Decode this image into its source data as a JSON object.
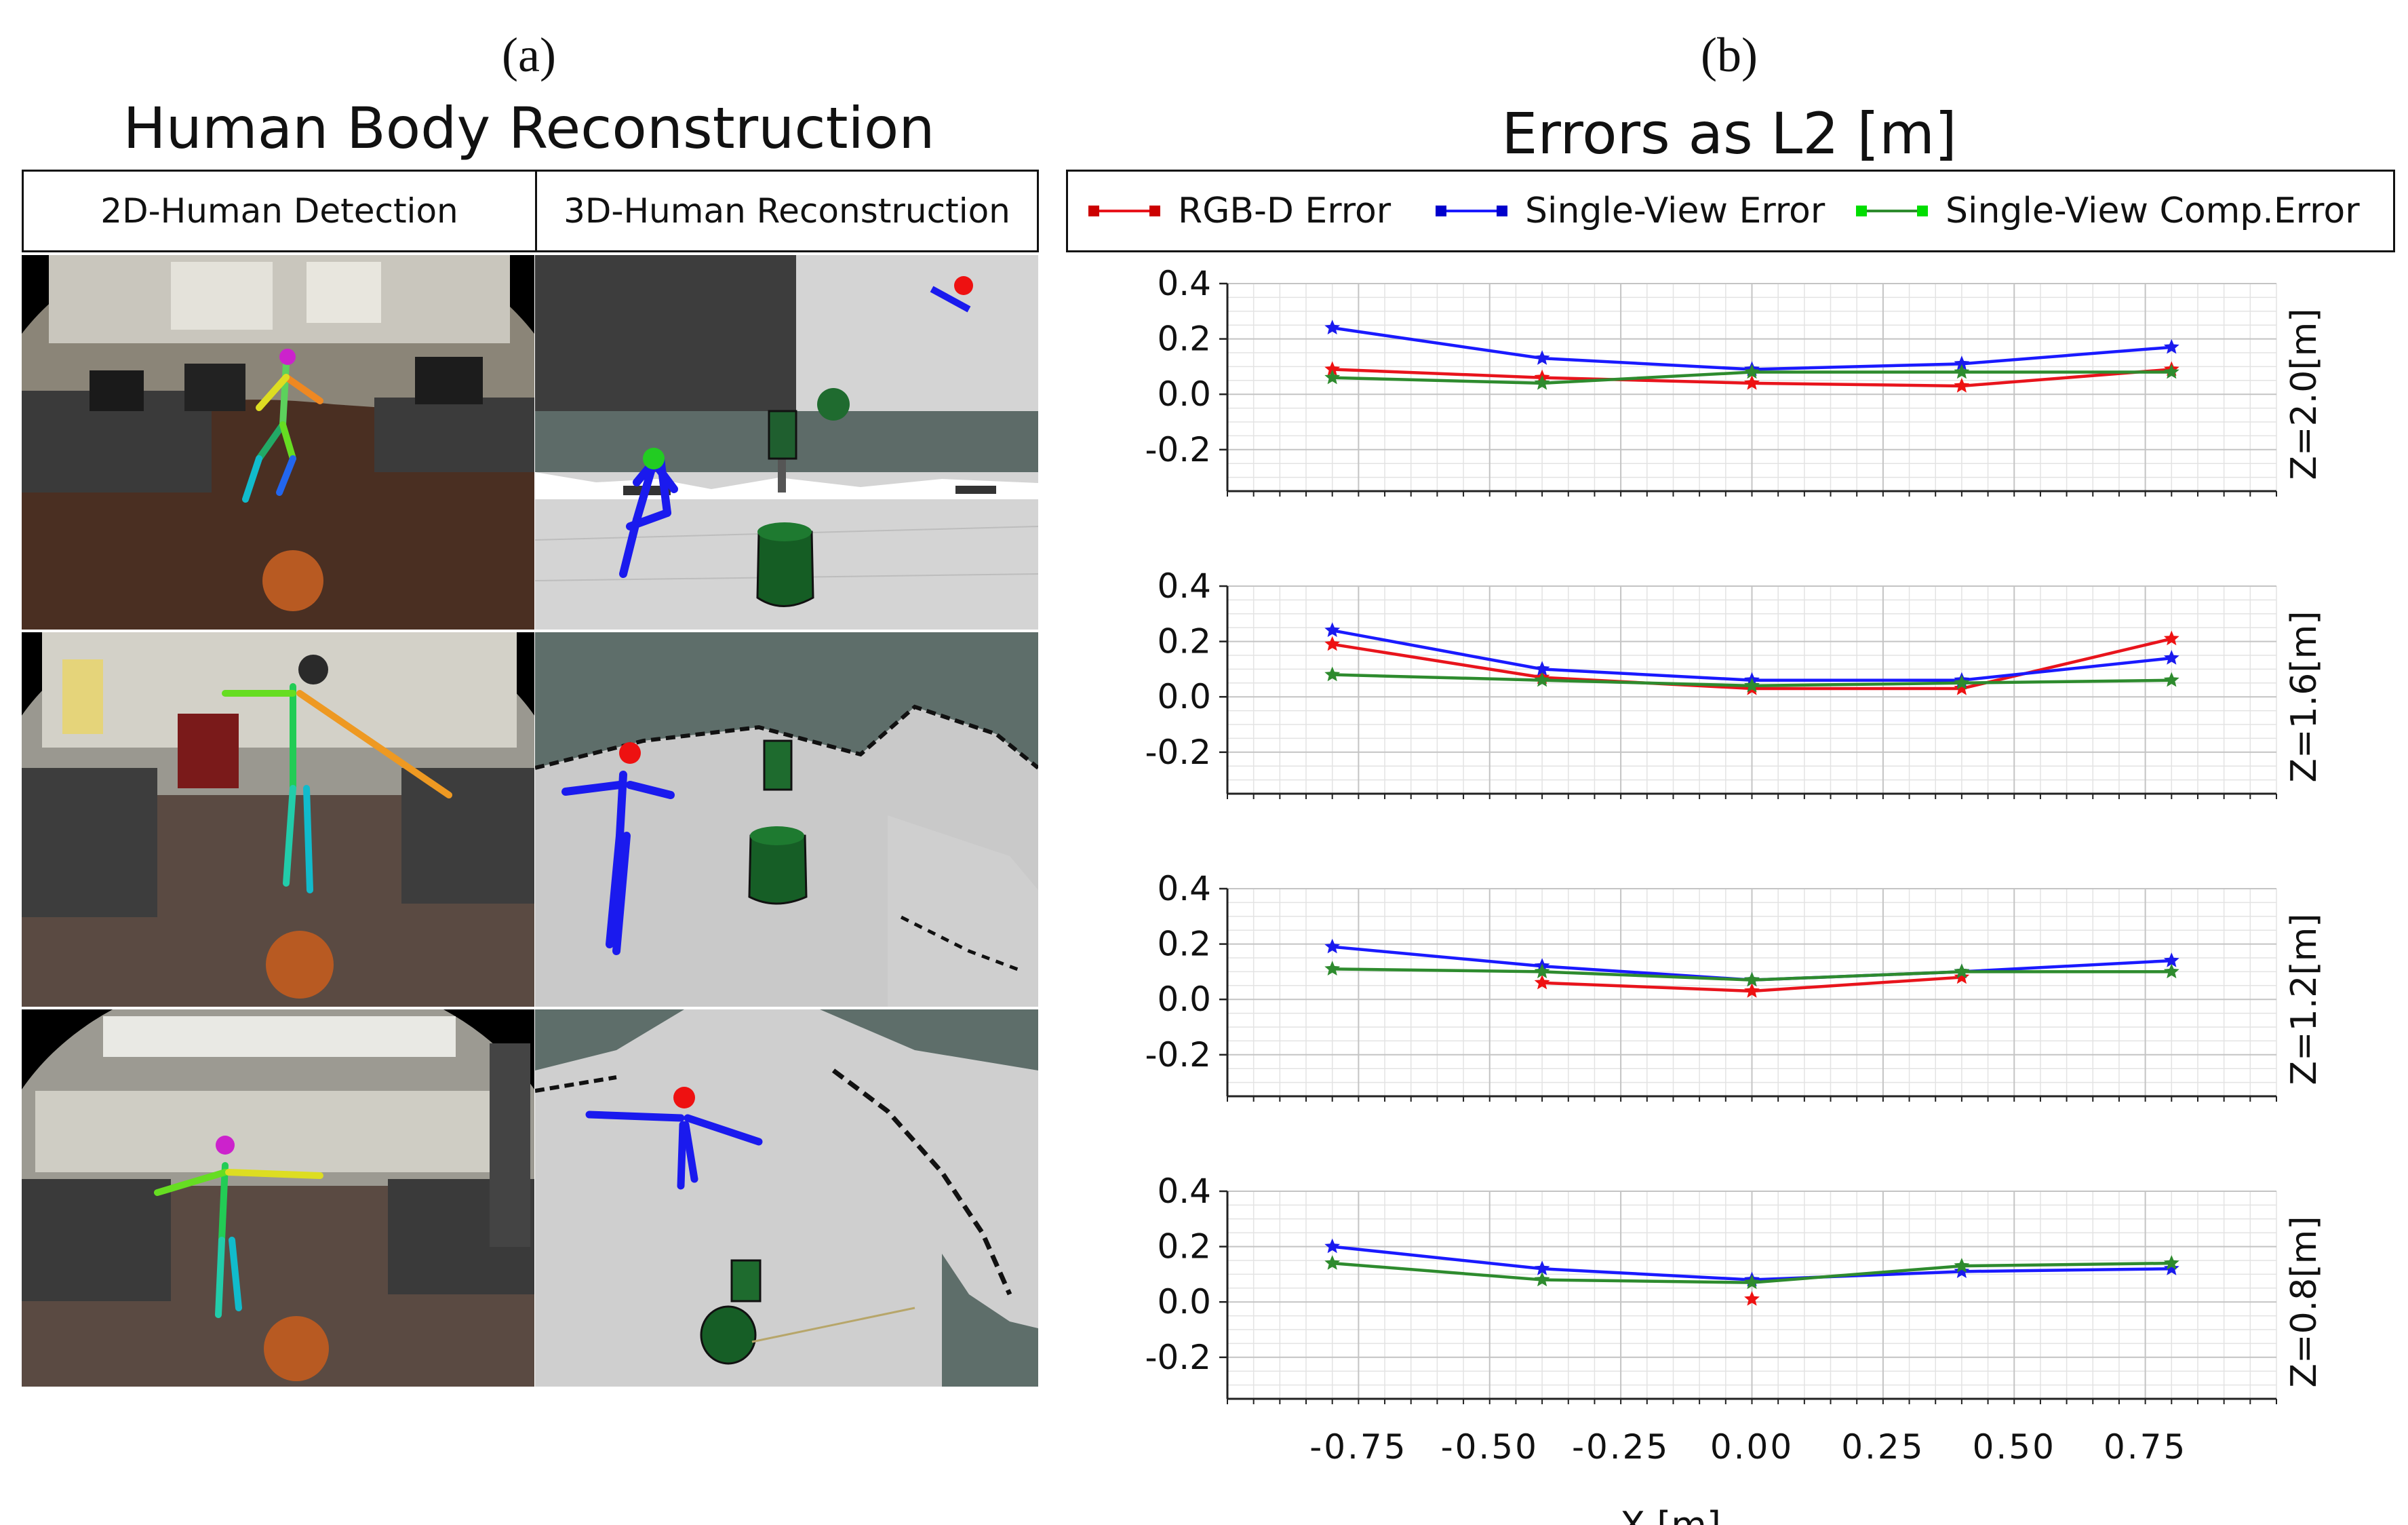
{
  "panel_a": {
    "letter": "(a)",
    "title": "Human Body Reconstruction",
    "col_headers": [
      "2D-Human Detection",
      "3D-Human Reconstruction"
    ]
  },
  "panel_b": {
    "letter": "(b)",
    "title": "Errors as L2 [m]"
  },
  "chart_data": {
    "type": "line",
    "title": "Errors as L2 [m]",
    "xlabel": "X [m]",
    "xlim": [
      -1.0,
      1.0
    ],
    "x_ticks": [
      -0.75,
      -0.5,
      -0.25,
      0.0,
      0.25,
      0.5,
      0.75
    ],
    "x_tick_labels": [
      "-0.75",
      "-0.50",
      "-0.25",
      "0.00",
      "0.25",
      "0.50",
      "0.75"
    ],
    "ylim": [
      -0.35,
      0.4
    ],
    "y_ticks": [
      0.4,
      0.2,
      0.0,
      -0.2
    ],
    "y_tick_labels": [
      "0.4",
      "0.2",
      "0.0",
      "-0.2"
    ],
    "grid": true,
    "legend_placement": "top",
    "legend": [
      {
        "name": "RGB-D Error",
        "color": "#e8141c",
        "marker": "#cc0000"
      },
      {
        "name": "Single-View Error",
        "color": "#1a1aff",
        "marker": "#0000cc"
      },
      {
        "name": "Single-View Comp.Error",
        "color": "#2e8b2e",
        "marker": "#00dd00"
      }
    ],
    "x": [
      -0.8,
      -0.4,
      0.0,
      0.4,
      0.8
    ],
    "panels": [
      {
        "label": "Z=2.0[m]",
        "series": [
          {
            "name": "RGB-D Error",
            "values": [
              0.09,
              0.06,
              0.04,
              0.03,
              0.09
            ]
          },
          {
            "name": "Single-View Error",
            "values": [
              0.24,
              0.13,
              0.09,
              0.11,
              0.17
            ]
          },
          {
            "name": "Single-View Comp.Error",
            "values": [
              0.06,
              0.04,
              0.08,
              0.08,
              0.08
            ]
          }
        ]
      },
      {
        "label": "Z=1.6[m]",
        "series": [
          {
            "name": "RGB-D Error",
            "values": [
              0.19,
              0.07,
              0.03,
              0.03,
              0.21
            ]
          },
          {
            "name": "Single-View Error",
            "values": [
              0.24,
              0.1,
              0.06,
              0.06,
              0.14
            ]
          },
          {
            "name": "Single-View Comp.Error",
            "values": [
              0.08,
              0.06,
              0.04,
              0.05,
              0.06
            ]
          }
        ]
      },
      {
        "label": "Z=1.2[m]",
        "series": [
          {
            "name": "RGB-D Error",
            "values": [
              null,
              0.06,
              0.03,
              0.08,
              null
            ]
          },
          {
            "name": "Single-View Error",
            "values": [
              0.19,
              0.12,
              0.07,
              0.1,
              0.14
            ]
          },
          {
            "name": "Single-View Comp.Error",
            "values": [
              0.11,
              0.1,
              0.07,
              0.1,
              0.1
            ]
          }
        ]
      },
      {
        "label": "Z=0.8[m]",
        "series": [
          {
            "name": "RGB-D Error",
            "values": [
              null,
              null,
              0.01,
              null,
              null
            ]
          },
          {
            "name": "Single-View Error",
            "values": [
              0.2,
              0.12,
              0.08,
              0.11,
              0.12
            ]
          },
          {
            "name": "Single-View Comp.Error",
            "values": [
              0.14,
              0.08,
              0.07,
              0.13,
              0.14
            ]
          }
        ]
      }
    ]
  }
}
